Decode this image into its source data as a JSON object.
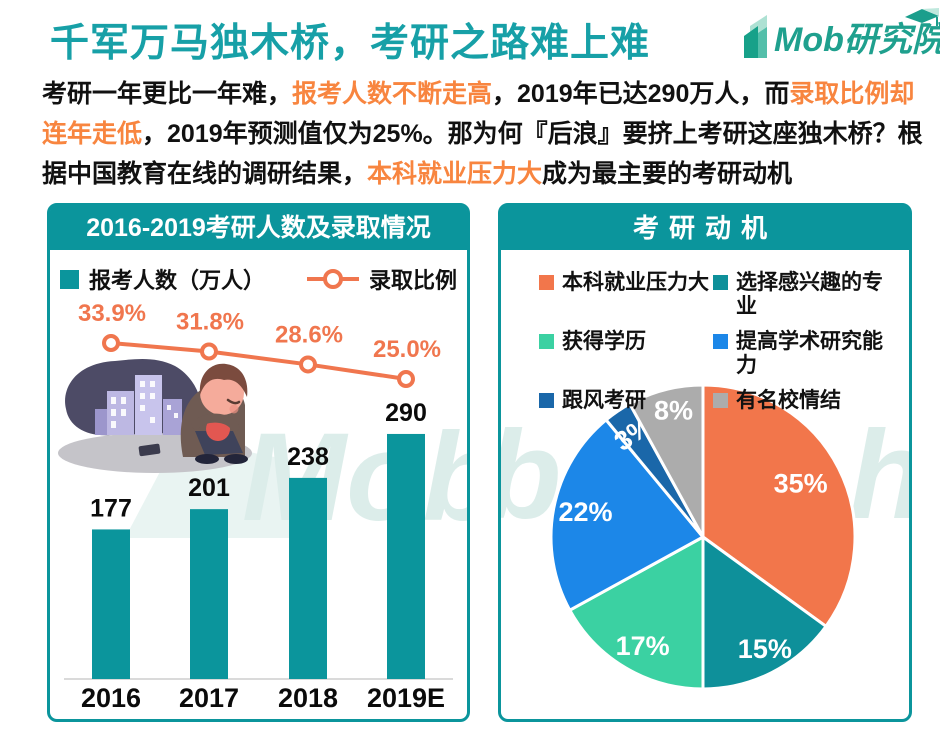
{
  "page_title": "千军万马独木桥，考研之路难上难",
  "logo": {
    "text": "Mob研究院"
  },
  "intro": {
    "segments": [
      {
        "text": "考研一年更比一年难，",
        "highlight": false
      },
      {
        "text": "报考人数不断走高",
        "highlight": true
      },
      {
        "text": "，2019年已达290万人，而",
        "highlight": false
      },
      {
        "text": "录取比例却连年走低",
        "highlight": true
      },
      {
        "text": "，2019年预测值仅为25%。那为何『后浪』要挤上考研这座独木桥？根据中国教育在线的调研结果，",
        "highlight": false
      },
      {
        "text": "本科就业压力大",
        "highlight": true
      },
      {
        "text": "成为最主要的考研动机",
        "highlight": false
      }
    ]
  },
  "colors": {
    "title_teal": "#17A0A7",
    "teal": "#0B959C",
    "orange": "#F8853F",
    "line_orange": "#F0764E",
    "axis_gray": "#DADADA",
    "watermark": "#DCEDEA",
    "logo_green": "#1FA08E",
    "ink": "#111111"
  },
  "left_panel": {
    "legend": [
      {
        "label": "报考人数（万人）",
        "marker": "square"
      },
      {
        "label": "录取比例",
        "marker": "line-dot"
      }
    ]
  },
  "watermarks": {
    "left_panel": "Mob",
    "right_panel_a": "b",
    "right_panel_b": "h"
  },
  "chart_data": [
    {
      "type": "bar",
      "title": "2016-2019考研人数及录取情况",
      "categories": [
        "2016",
        "2017",
        "2018",
        "2019E"
      ],
      "series": [
        {
          "name": "报考人数（万人）",
          "type": "bar",
          "values": [
            177,
            201,
            238,
            290
          ]
        },
        {
          "name": "录取比例",
          "type": "line",
          "values": [
            33.9,
            31.8,
            28.6,
            25.0
          ],
          "unit": "%"
        }
      ],
      "value_labels": [
        "177",
        "201",
        "238",
        "290"
      ],
      "line_labels": [
        "33.9%",
        "31.8%",
        "28.6%",
        "25.0%"
      ],
      "grid": false,
      "legend_position": "top"
    },
    {
      "type": "pie",
      "title": "考研动机",
      "slices": [
        {
          "label": "本科就业压力大",
          "value": 35,
          "display": "35%",
          "color": "#F2764B",
          "label_offset": [
            -8,
            2
          ]
        },
        {
          "label": "选择感兴趣的专业",
          "value": 15,
          "display": "15%",
          "color": "#0E909A",
          "label_offset": [
            8,
            8
          ]
        },
        {
          "label": "获得学历",
          "value": 17,
          "display": "17%",
          "color": "#3BD1A2",
          "label_offset": [
            0,
            9
          ]
        },
        {
          "label": "提高学术研究能力",
          "value": 22,
          "display": "22%",
          "color": "#1C87E8",
          "label_offset": [
            -1,
            -1
          ]
        },
        {
          "label": "跟风考研",
          "value": 3,
          "display": "3%",
          "color": "#1A67A9",
          "label_offset": [
            -2,
            -4
          ],
          "label_rotate": -35
        },
        {
          "label": "有名校情结",
          "value": 8,
          "display": "8%",
          "color": "#ACACAC",
          "label_offset": [
            0,
            -10
          ]
        }
      ],
      "legend_position": "top",
      "start_angle_deg": 0,
      "direction": "clockwise"
    }
  ]
}
